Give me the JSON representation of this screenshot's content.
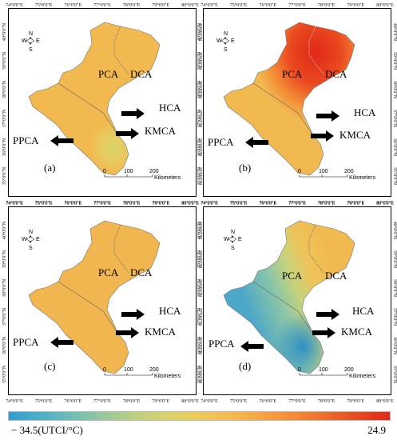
{
  "figure": {
    "panels": [
      {
        "letter": "(a)",
        "fill": "#f2b950"
      },
      {
        "letter": "(b)",
        "fill": "#f2b950"
      },
      {
        "letter": "(c)",
        "fill": "#f2b950"
      },
      {
        "letter": "(d)",
        "fill": "#f2b950"
      }
    ],
    "top_ticks": [
      "74°0'0\"E",
      "75°0'0\"E",
      "76°0'0\"E",
      "77°0'0\"E",
      "78°0'0\"E",
      "79°0'0\"E",
      "80°0'0\"E"
    ],
    "side_ticks": [
      "40°0'0\"N",
      "39°0'0\"N",
      "38°0'0\"N",
      "37°0'0\"N",
      "36°0'0\"N",
      "35°0'0\"N"
    ],
    "regions": {
      "pca": "PCA",
      "dca": "DCA",
      "hca": "HCA",
      "kmca": "KMCA",
      "ppca": "PPCA"
    },
    "compass": {
      "n": "N",
      "s": "S",
      "e": "E",
      "w": "W"
    },
    "scalebar": {
      "zero": "0",
      "mid": "100",
      "end": "200",
      "unit": "Kilometers"
    }
  },
  "colorbar": {
    "min_label": "− 34.5(UTCI/°C)",
    "max_label": "24.9",
    "colors": [
      "#2e9fd2",
      "#4bb0c9",
      "#6fbfb8",
      "#97c99c",
      "#bcd07f",
      "#d9d166",
      "#eec957",
      "#f6b94c",
      "#f7a43f",
      "#f58a33",
      "#f06b29",
      "#e8491f",
      "#e02718"
    ]
  }
}
